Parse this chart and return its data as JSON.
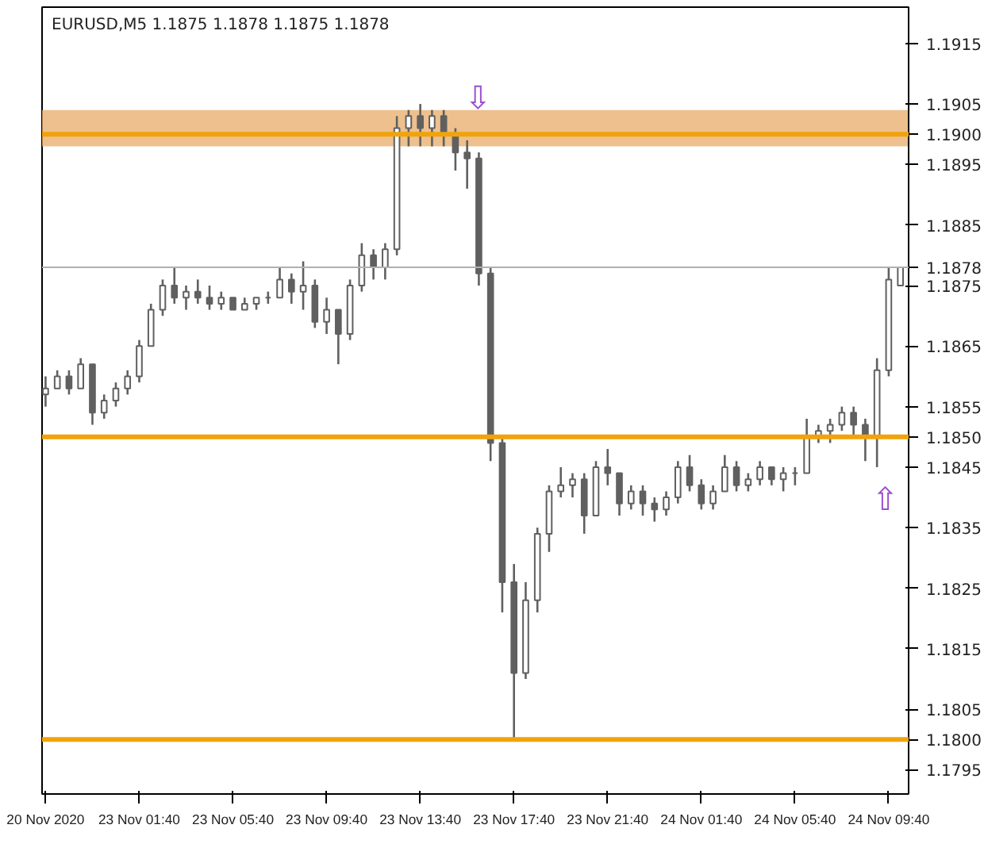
{
  "chart_data": {
    "type": "candlestick",
    "title": "EURUSD,M5 1.1875 1.1878 1.1875 1.1878",
    "categories": [
      "20 Nov 2020",
      null,
      null,
      null,
      null,
      null,
      null,
      null,
      "23 Nov 01:40",
      null,
      null,
      null,
      null,
      null,
      null,
      null,
      "23 Nov 05:40",
      null,
      null,
      null,
      null,
      null,
      null,
      null,
      "23 Nov 09:40",
      null,
      null,
      null,
      null,
      null,
      null,
      null,
      "23 Nov 13:40",
      null,
      null,
      null,
      null,
      null,
      null,
      null,
      "23 Nov 17:40",
      null,
      null,
      null,
      null,
      null,
      null,
      null,
      "23 Nov 21:40",
      null,
      null,
      null,
      null,
      null,
      null,
      null,
      "24 Nov 01:40",
      null,
      null,
      null,
      null,
      null,
      null,
      null,
      "24 Nov 05:40",
      null,
      null,
      null,
      null,
      null,
      null,
      null,
      "24 Nov 09:40",
      null
    ],
    "ohlc": [
      [
        1.1857,
        1.186,
        1.1855,
        1.1858
      ],
      [
        1.1858,
        1.1861,
        1.1858,
        1.186
      ],
      [
        1.186,
        1.1861,
        1.1857,
        1.1858
      ],
      [
        1.1858,
        1.1863,
        1.1858,
        1.1862
      ],
      [
        1.1862,
        1.1862,
        1.1852,
        1.1854
      ],
      [
        1.1854,
        1.1857,
        1.1853,
        1.1856
      ],
      [
        1.1856,
        1.1859,
        1.1855,
        1.1858
      ],
      [
        1.1858,
        1.1861,
        1.1857,
        1.186
      ],
      [
        1.186,
        1.1866,
        1.1859,
        1.1865
      ],
      [
        1.1865,
        1.1872,
        1.1865,
        1.1871
      ],
      [
        1.1871,
        1.1876,
        1.187,
        1.1875
      ],
      [
        1.1875,
        1.1878,
        1.1872,
        1.1873
      ],
      [
        1.1873,
        1.1875,
        1.1871,
        1.1874
      ],
      [
        1.1874,
        1.1876,
        1.1872,
        1.1873
      ],
      [
        1.1873,
        1.1875,
        1.1871,
        1.1872
      ],
      [
        1.1872,
        1.1874,
        1.1871,
        1.1873
      ],
      [
        1.1873,
        1.1873,
        1.1871,
        1.1871
      ],
      [
        1.1871,
        1.1873,
        1.1871,
        1.1872
      ],
      [
        1.1872,
        1.1873,
        1.1871,
        1.1873
      ],
      [
        1.1873,
        1.1874,
        1.1872,
        1.1873
      ],
      [
        1.1873,
        1.1878,
        1.1873,
        1.1876
      ],
      [
        1.1876,
        1.1877,
        1.1872,
        1.1874
      ],
      [
        1.1874,
        1.1879,
        1.1871,
        1.1875
      ],
      [
        1.1875,
        1.1876,
        1.1868,
        1.1869
      ],
      [
        1.1869,
        1.1873,
        1.1867,
        1.1871
      ],
      [
        1.1871,
        1.1871,
        1.1862,
        1.1867
      ],
      [
        1.1867,
        1.1876,
        1.1866,
        1.1875
      ],
      [
        1.1875,
        1.1882,
        1.1874,
        1.188
      ],
      [
        1.188,
        1.1881,
        1.1876,
        1.1878
      ],
      [
        1.1878,
        1.1882,
        1.1876,
        1.1881
      ],
      [
        1.1881,
        1.1903,
        1.188,
        1.1901
      ],
      [
        1.1901,
        1.1904,
        1.1898,
        1.1903
      ],
      [
        1.1903,
        1.1905,
        1.1898,
        1.1901
      ],
      [
        1.1901,
        1.1904,
        1.1898,
        1.1903
      ],
      [
        1.1903,
        1.1904,
        1.1898,
        1.19
      ],
      [
        1.19,
        1.1901,
        1.1894,
        1.1897
      ],
      [
        1.1897,
        1.1899,
        1.1891,
        1.1896
      ],
      [
        1.1896,
        1.1897,
        1.1875,
        1.1877
      ],
      [
        1.1877,
        1.1878,
        1.1846,
        1.1849
      ],
      [
        1.1849,
        1.185,
        1.1821,
        1.1826
      ],
      [
        1.1826,
        1.1829,
        1.18,
        1.1811
      ],
      [
        1.1811,
        1.1826,
        1.181,
        1.1823
      ],
      [
        1.1823,
        1.1835,
        1.1821,
        1.1834
      ],
      [
        1.1834,
        1.1842,
        1.1831,
        1.1841
      ],
      [
        1.1841,
        1.1845,
        1.184,
        1.1842
      ],
      [
        1.1842,
        1.1844,
        1.184,
        1.1843
      ],
      [
        1.1843,
        1.1844,
        1.1834,
        1.1837
      ],
      [
        1.1837,
        1.1846,
        1.1837,
        1.1845
      ],
      [
        1.1845,
        1.1848,
        1.1842,
        1.1844
      ],
      [
        1.1844,
        1.1844,
        1.1837,
        1.1839
      ],
      [
        1.1839,
        1.1842,
        1.1838,
        1.1841
      ],
      [
        1.1841,
        1.1842,
        1.1837,
        1.1839
      ],
      [
        1.1839,
        1.184,
        1.1836,
        1.1838
      ],
      [
        1.1838,
        1.1841,
        1.1837,
        1.184
      ],
      [
        1.184,
        1.1846,
        1.1839,
        1.1845
      ],
      [
        1.1845,
        1.1847,
        1.1841,
        1.1842
      ],
      [
        1.1842,
        1.1843,
        1.1838,
        1.1839
      ],
      [
        1.1839,
        1.1842,
        1.1838,
        1.1841
      ],
      [
        1.1841,
        1.1847,
        1.1841,
        1.1845
      ],
      [
        1.1845,
        1.1846,
        1.1841,
        1.1842
      ],
      [
        1.1842,
        1.1844,
        1.1841,
        1.1843
      ],
      [
        1.1843,
        1.1846,
        1.1842,
        1.1845
      ],
      [
        1.1845,
        1.1845,
        1.1842,
        1.1843
      ],
      [
        1.1843,
        1.1845,
        1.1841,
        1.1844
      ],
      [
        1.1844,
        1.1845,
        1.1842,
        1.1844
      ],
      [
        1.1844,
        1.1853,
        1.1844,
        1.185
      ],
      [
        1.185,
        1.1852,
        1.1849,
        1.1851
      ],
      [
        1.1851,
        1.1853,
        1.1849,
        1.1852
      ],
      [
        1.1852,
        1.1855,
        1.1851,
        1.1854
      ],
      [
        1.1854,
        1.1855,
        1.185,
        1.1852
      ],
      [
        1.1852,
        1.1853,
        1.1846,
        1.185
      ],
      [
        1.185,
        1.1863,
        1.1845,
        1.1861
      ],
      [
        1.1861,
        1.1878,
        1.186,
        1.1876
      ],
      [
        1.1875,
        1.1878,
        1.1875,
        1.1878
      ]
    ],
    "color": "#606060",
    "ylim": [
      1.1791,
      1.1921
    ],
    "yticks": [
      1.1795,
      1.1805,
      1.1815,
      1.1825,
      1.1835,
      1.1845,
      1.1855,
      1.1865,
      1.1875,
      1.1885,
      1.1895,
      1.1905,
      1.1915
    ],
    "grid": false,
    "ref_lines": [
      {
        "axis": "y",
        "value": 1.19,
        "label": "1.1900",
        "color": "#f0a30a"
      },
      {
        "axis": "y",
        "value": 1.185,
        "label": "1.1850",
        "color": "#f0a30a"
      },
      {
        "axis": "y",
        "value": 1.18,
        "label": "1.1800",
        "color": "#f0a30a"
      },
      {
        "axis": "y",
        "value": 1.1878,
        "label": "1.1878",
        "color": "#b0b0b0"
      }
    ],
    "bands": [
      {
        "axis": "y",
        "from": 1.1898,
        "to": 1.1904,
        "color": "#e8b070"
      }
    ],
    "annotations": [
      "⇩",
      "⇧"
    ]
  }
}
